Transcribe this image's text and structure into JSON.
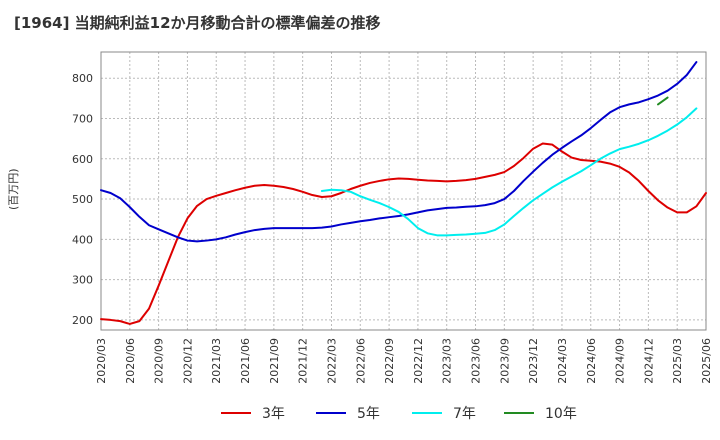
{
  "chart_data": {
    "type": "line",
    "title": "[1964]  当期純利益12か月移動合計の標準偏差の推移",
    "ylabel": "(百万円)",
    "xlabel": "",
    "ylim": [
      175,
      865
    ],
    "yticks": [
      200,
      300,
      400,
      500,
      600,
      700,
      800
    ],
    "xticks": [
      "2020/03",
      "2020/06",
      "2020/09",
      "2020/12",
      "2021/03",
      "2021/06",
      "2021/09",
      "2021/12",
      "2022/03",
      "2022/06",
      "2022/09",
      "2022/12",
      "2023/03",
      "2023/06",
      "2023/09",
      "2023/12",
      "2024/03",
      "2024/06",
      "2024/09",
      "2024/12",
      "2025/03",
      "2025/06"
    ],
    "grid": true,
    "legend_position": "bottom",
    "series": [
      {
        "name": "3年",
        "color": "#dd0000",
        "start": "2020/03",
        "values": [
          202,
          200,
          197,
          190,
          197,
          228,
          285,
          345,
          405,
          452,
          483,
          500,
          508,
          515,
          522,
          528,
          533,
          535,
          533,
          530,
          525,
          518,
          510,
          505,
          507,
          515,
          525,
          533,
          540,
          545,
          549,
          551,
          550,
          548,
          546,
          545,
          544,
          545,
          547,
          550,
          555,
          560,
          567,
          582,
          602,
          625,
          638,
          635,
          618,
          603,
          597,
          595,
          593,
          588,
          580,
          566,
          545,
          520,
          497,
          479,
          467,
          467,
          482,
          515
        ]
      },
      {
        "name": "5年",
        "color": "#0000cc",
        "start": "2020/03",
        "values": [
          522,
          515,
          502,
          480,
          456,
          435,
          425,
          415,
          405,
          397,
          395,
          397,
          400,
          405,
          412,
          418,
          423,
          426,
          428,
          428,
          428,
          428,
          428,
          429,
          432,
          437,
          441,
          445,
          448,
          452,
          455,
          458,
          462,
          467,
          472,
          475,
          478,
          479,
          481,
          482,
          485,
          490,
          500,
          520,
          545,
          568,
          590,
          610,
          627,
          643,
          658,
          676,
          696,
          715,
          728,
          735,
          740,
          748,
          757,
          769,
          786,
          808,
          840
        ]
      },
      {
        "name": "7年",
        "color": "#00eeee",
        "start": "2022/02",
        "values": [
          520,
          523,
          522,
          518,
          507,
          498,
          490,
          480,
          468,
          450,
          428,
          415,
          410,
          410,
          411,
          412,
          414,
          416,
          423,
          437,
          458,
          478,
          497,
          513,
          529,
          543,
          556,
          569,
          584,
          600,
          613,
          624,
          630,
          637,
          646,
          657,
          670,
          685,
          703,
          725
        ]
      },
      {
        "name": "10年",
        "color": "#228b22",
        "start": "2025/01",
        "values": [
          735,
          752
        ]
      }
    ]
  }
}
